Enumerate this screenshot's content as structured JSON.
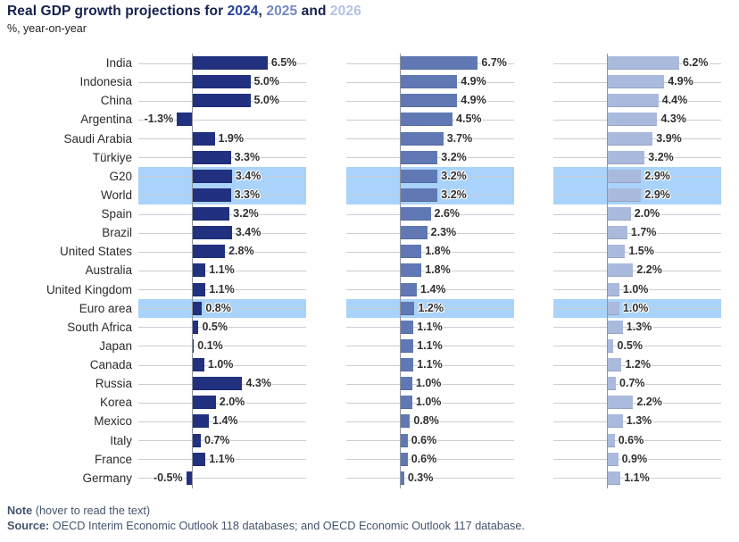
{
  "header": {
    "title_prefix": "Real GDP growth projections for ",
    "year1": "2024",
    "sep1": ", ",
    "year2": "2025",
    "sep2": " and ",
    "year3": "2026",
    "subtitle": "%, year-on-year"
  },
  "footer": {
    "note_label": "Note",
    "note_text": " (hover to read the text)",
    "source_label": "Source:",
    "source_text": " OECD Interim Economic Outlook 118 databases; and OECD Economic Outlook 117 database."
  },
  "colors": {
    "title": "#15214d",
    "year_2024": "#213180",
    "year_2025": "#6079b4",
    "year_2026": "#aabadd",
    "row_highlight": "#a9d3fa",
    "gridline": "#c9cdd4",
    "axis_line": "#8f959e"
  },
  "chart_data": {
    "type": "bar",
    "orientation": "horizontal",
    "title": "Real GDP growth projections for 2024, 2025 and 2026",
    "subtitle": "%, year-on-year",
    "value_suffix": "%",
    "panels": [
      "2024",
      "2025",
      "2026"
    ],
    "categories": [
      "India",
      "Indonesia",
      "China",
      "Argentina",
      "Saudi Arabia",
      "Türkiye",
      "G20",
      "World",
      "Spain",
      "Brazil",
      "United States",
      "Australia",
      "United Kingdom",
      "Euro area",
      "South Africa",
      "Japan",
      "Canada",
      "Russia",
      "Korea",
      "Mexico",
      "Italy",
      "France",
      "Germany"
    ],
    "highlighted_categories": [
      "G20",
      "World",
      "Euro area"
    ],
    "series": [
      {
        "name": "2024",
        "color": "#213180",
        "values": [
          6.5,
          5.0,
          5.0,
          -1.3,
          1.9,
          3.3,
          3.4,
          3.3,
          3.2,
          3.4,
          2.8,
          1.1,
          1.1,
          0.8,
          0.5,
          0.1,
          1.0,
          4.3,
          2.0,
          1.4,
          0.7,
          1.1,
          -0.5
        ]
      },
      {
        "name": "2025",
        "color": "#6079b4",
        "values": [
          6.7,
          4.9,
          4.9,
          4.5,
          3.7,
          3.2,
          3.2,
          3.2,
          2.6,
          2.3,
          1.8,
          1.8,
          1.4,
          1.2,
          1.1,
          1.1,
          1.1,
          1.0,
          1.0,
          0.8,
          0.6,
          0.6,
          0.3
        ]
      },
      {
        "name": "2026",
        "color": "#aabadd",
        "values": [
          6.2,
          4.9,
          4.4,
          4.3,
          3.9,
          3.2,
          2.9,
          2.9,
          2.0,
          1.7,
          1.5,
          2.2,
          1.0,
          1.0,
          1.3,
          0.5,
          1.2,
          0.7,
          2.2,
          1.3,
          0.6,
          0.9,
          1.1
        ]
      }
    ],
    "xlim_per_panel": [
      -1.6,
      7.0
    ],
    "grid": "horizontal-row-lines",
    "legend": "in-title-colored-years"
  }
}
